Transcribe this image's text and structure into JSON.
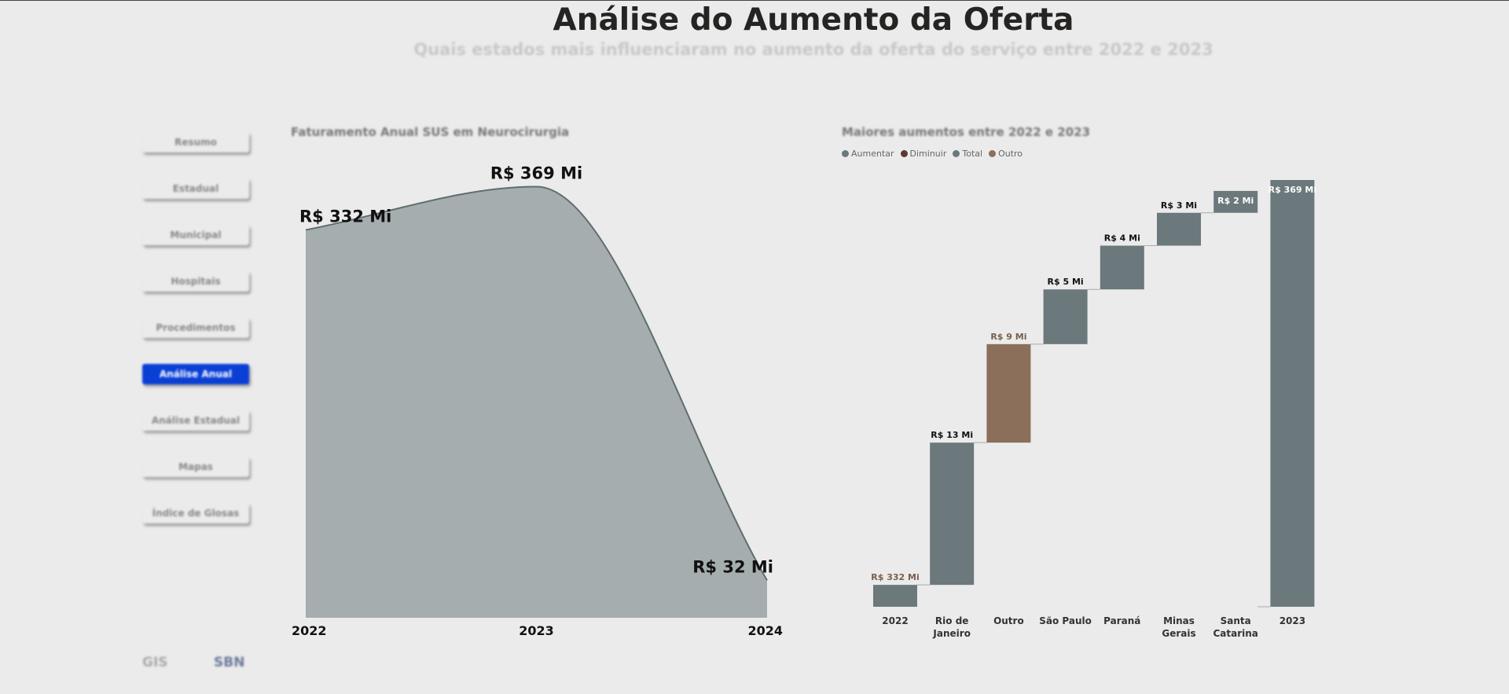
{
  "header": {
    "title": "Análise do Aumento da Oferta",
    "subtitle": "Quais estados mais influenciaram no aumento da oferta do serviço entre 2022 e 2023"
  },
  "nav": {
    "items": [
      "Resumo",
      "Estadual",
      "Municipal",
      "Hospitais",
      "Procedimentos",
      "Análise Anual",
      "Análise Estadual",
      "Mapas",
      "Índice de Glosas"
    ],
    "active": 5
  },
  "logos": [
    "GIS",
    "SBN"
  ],
  "chart_data": [
    {
      "type": "area",
      "title": "Faturamento Anual SUS em Neurocirurgia",
      "categories": [
        "2022",
        "2023",
        "2024"
      ],
      "values": [
        332,
        369,
        32
      ],
      "value_labels": [
        "R$ 332 Mi",
        "R$ 369 Mi",
        "R$ 32 Mi"
      ],
      "color": "#a6adaf",
      "line_color": "#5f6e6e"
    },
    {
      "type": "waterfall",
      "title": "Maiores aumentos entre 2022 e 2023",
      "categories": [
        "2022",
        "Rio de Janeiro",
        "Outro",
        "São Paulo",
        "Paraná",
        "Minas Gerais",
        "Santa Catarina",
        "2023"
      ],
      "ylim": [
        330,
        369
      ],
      "series": [
        {
          "name": "Aumentar",
          "color": "#6b787c",
          "values": [
            null,
            13,
            null,
            5,
            4,
            3,
            2,
            null
          ],
          "value_labels": [
            null,
            "R$ 13 Mi",
            null,
            "R$ 5 Mi",
            "R$ 4 Mi",
            "R$ 3 Mi",
            "R$ 2 Mi",
            null
          ]
        },
        {
          "name": "Diminuir",
          "color": "#5a3a32",
          "values": [
            null,
            null,
            null,
            null,
            null,
            null,
            null,
            null
          ]
        },
        {
          "name": "Total",
          "color": "#6b787c",
          "is_total": true,
          "values": [
            332,
            null,
            null,
            null,
            null,
            null,
            null,
            369
          ],
          "value_labels": [
            "R$ 332 Mi",
            null,
            null,
            null,
            null,
            null,
            null,
            "R$ 369 Mi"
          ]
        },
        {
          "name": "Outro",
          "color": "#8b6f5a",
          "values": [
            null,
            null,
            9,
            null,
            null,
            null,
            null,
            null
          ],
          "value_labels": [
            null,
            null,
            "R$ 9 Mi",
            null,
            null,
            null,
            null,
            null
          ]
        }
      ]
    }
  ]
}
